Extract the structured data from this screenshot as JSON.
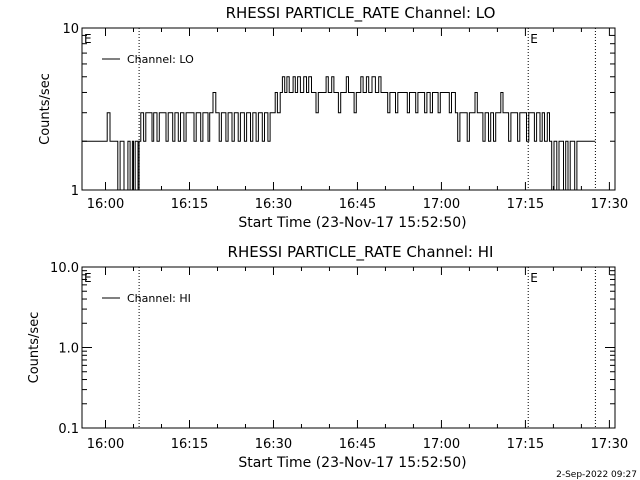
{
  "footer": {
    "timestamp": "2-Sep-2022 09:27"
  },
  "chart_data": [
    {
      "type": "line",
      "title": "RHESSI PARTICLE_RATE Channel: LO",
      "xlabel": "Start Time (23-Nov-17 15:52:50)",
      "ylabel": "Counts/sec",
      "log_y": true,
      "ylim": [
        1,
        10
      ],
      "xlim_minutes": [
        15.8,
        111.0
      ],
      "x_tick_labels": [
        "16:00",
        "16:15",
        "16:30",
        "16:45",
        "17:00",
        "17:15",
        "17:30"
      ],
      "x_tick_minutes": [
        20,
        35,
        50,
        65,
        80,
        95,
        110
      ],
      "y_tick_labels": [
        "1",
        "10"
      ],
      "y_tick_values": [
        1,
        10
      ],
      "legend": {
        "position": "top-left",
        "entries": [
          "Channel: LO"
        ]
      },
      "event_markers": [
        {
          "label": "E",
          "minute": 15.8,
          "dotted": false
        },
        {
          "label": "",
          "minute": 26.0,
          "dotted": true
        },
        {
          "label": "E",
          "minute": 95.5,
          "dotted": true
        },
        {
          "label": "",
          "minute": 107.5,
          "dotted": true
        }
      ],
      "series": [
        {
          "name": "Channel: LO",
          "data": [
            [
              15.8,
              2
            ],
            [
              20,
              2
            ],
            [
              20.3,
              3
            ],
            [
              20.8,
              2
            ],
            [
              22,
              2
            ],
            [
              22.2,
              1
            ],
            [
              22.6,
              2
            ],
            [
              23,
              2
            ],
            [
              23.3,
              1
            ],
            [
              23.7,
              1
            ],
            [
              24,
              2
            ],
            [
              24.4,
              1
            ],
            [
              24.8,
              2
            ],
            [
              25,
              1
            ],
            [
              25.3,
              2
            ],
            [
              25.8,
              1
            ],
            [
              26,
              2
            ],
            [
              26.3,
              3
            ],
            [
              26.8,
              2
            ],
            [
              27.2,
              3
            ],
            [
              28,
              3
            ],
            [
              28.3,
              2
            ],
            [
              28.6,
              3
            ],
            [
              29.2,
              2
            ],
            [
              29.6,
              3
            ],
            [
              30.5,
              3
            ],
            [
              30.8,
              2
            ],
            [
              31.2,
              3
            ],
            [
              32,
              2
            ],
            [
              32.4,
              3
            ],
            [
              33,
              2
            ],
            [
              33.4,
              3
            ],
            [
              34,
              2
            ],
            [
              34.4,
              3
            ],
            [
              35.5,
              3
            ],
            [
              35.8,
              2
            ],
            [
              36.2,
              3
            ],
            [
              37,
              2
            ],
            [
              37.4,
              3
            ],
            [
              38,
              3
            ],
            [
              38.3,
              2
            ],
            [
              38.6,
              3
            ],
            [
              39.2,
              4
            ],
            [
              39.7,
              3
            ],
            [
              40.3,
              2
            ],
            [
              40.7,
              3
            ],
            [
              41.5,
              2
            ],
            [
              41.9,
              3
            ],
            [
              42.6,
              2
            ],
            [
              43,
              3
            ],
            [
              43.7,
              2
            ],
            [
              44.1,
              3
            ],
            [
              44.8,
              2
            ],
            [
              45.2,
              3
            ],
            [
              45.9,
              2
            ],
            [
              46.3,
              3
            ],
            [
              46.9,
              2
            ],
            [
              47.3,
              3
            ],
            [
              48,
              2
            ],
            [
              48.4,
              3
            ],
            [
              49,
              2
            ],
            [
              49.4,
              3
            ],
            [
              50,
              3
            ],
            [
              50.3,
              4
            ],
            [
              50.7,
              3
            ],
            [
              51.2,
              4
            ],
            [
              51.6,
              5
            ],
            [
              52,
              4
            ],
            [
              52.4,
              5
            ],
            [
              52.8,
              4
            ],
            [
              53.2,
              4
            ],
            [
              53.5,
              5
            ],
            [
              53.9,
              4
            ],
            [
              54.3,
              5
            ],
            [
              54.8,
              4
            ],
            [
              55.4,
              5
            ],
            [
              55.9,
              4
            ],
            [
              56.3,
              5
            ],
            [
              56.8,
              4
            ],
            [
              57.2,
              4
            ],
            [
              57.6,
              3
            ],
            [
              58,
              4
            ],
            [
              59,
              4
            ],
            [
              59.4,
              5
            ],
            [
              59.8,
              4
            ],
            [
              60.4,
              5
            ],
            [
              60.8,
              4
            ],
            [
              61.2,
              4
            ],
            [
              61.6,
              3
            ],
            [
              62,
              4
            ],
            [
              62.6,
              4
            ],
            [
              63,
              5
            ],
            [
              63.4,
              4
            ],
            [
              64,
              4
            ],
            [
              64.4,
              3
            ],
            [
              64.8,
              4
            ],
            [
              65.6,
              5
            ],
            [
              66,
              4
            ],
            [
              66.6,
              5
            ],
            [
              67,
              4
            ],
            [
              67.6,
              5
            ],
            [
              68.2,
              4
            ],
            [
              68.8,
              5
            ],
            [
              69.2,
              4
            ],
            [
              70,
              4
            ],
            [
              70.4,
              3
            ],
            [
              70.8,
              4
            ],
            [
              71.4,
              4
            ],
            [
              71.8,
              3
            ],
            [
              72.2,
              4
            ],
            [
              73.5,
              4
            ],
            [
              73.9,
              3
            ],
            [
              74.3,
              4
            ],
            [
              75,
              4
            ],
            [
              75.4,
              3
            ],
            [
              75.8,
              4
            ],
            [
              76.6,
              4
            ],
            [
              77,
              3
            ],
            [
              77.4,
              4
            ],
            [
              78,
              3
            ],
            [
              78.4,
              4
            ],
            [
              79,
              4
            ],
            [
              79.4,
              3
            ],
            [
              79.8,
              4
            ],
            [
              81,
              4
            ],
            [
              81.4,
              3
            ],
            [
              81.8,
              4
            ],
            [
              82.5,
              3
            ],
            [
              82.9,
              2
            ],
            [
              83.3,
              3
            ],
            [
              84.2,
              3
            ],
            [
              84.6,
              2
            ],
            [
              85,
              3
            ],
            [
              85.6,
              3
            ],
            [
              86,
              4
            ],
            [
              86.4,
              3
            ],
            [
              87,
              3
            ],
            [
              87.4,
              2
            ],
            [
              87.8,
              3
            ],
            [
              88.4,
              2
            ],
            [
              88.8,
              3
            ],
            [
              89.3,
              2
            ],
            [
              89.7,
              3
            ],
            [
              90.2,
              3
            ],
            [
              90.6,
              4
            ],
            [
              91,
              3
            ],
            [
              91.6,
              3
            ],
            [
              92,
              2
            ],
            [
              92.4,
              3
            ],
            [
              93.2,
              3
            ],
            [
              93.6,
              2
            ],
            [
              94,
              3
            ],
            [
              94.8,
              3
            ],
            [
              95.2,
              2
            ],
            [
              95.6,
              3
            ],
            [
              96.2,
              3
            ],
            [
              96.6,
              2
            ],
            [
              97,
              3
            ],
            [
              97.6,
              2
            ],
            [
              98,
              3
            ],
            [
              98.4,
              2
            ],
            [
              98.9,
              3
            ],
            [
              99.3,
              2
            ],
            [
              99.7,
              1
            ],
            [
              100.1,
              2
            ],
            [
              100.6,
              1
            ],
            [
              101,
              2
            ],
            [
              101.5,
              2
            ],
            [
              101.8,
              1
            ],
            [
              102.2,
              2
            ],
            [
              102.6,
              1
            ],
            [
              103,
              2
            ],
            [
              103.4,
              2
            ],
            [
              103.8,
              1
            ],
            [
              104.2,
              2
            ],
            [
              107.5,
              2
            ]
          ]
        }
      ]
    },
    {
      "type": "line",
      "title": "RHESSI PARTICLE_RATE Channel: HI",
      "xlabel": "Start Time (23-Nov-17 15:52:50)",
      "ylabel": "Counts/sec",
      "log_y": true,
      "ylim": [
        0.1,
        10
      ],
      "xlim_minutes": [
        15.8,
        111.0
      ],
      "x_tick_labels": [
        "16:00",
        "16:15",
        "16:30",
        "16:45",
        "17:00",
        "17:15",
        "17:30"
      ],
      "x_tick_minutes": [
        20,
        35,
        50,
        65,
        80,
        95,
        110
      ],
      "y_tick_labels": [
        "0.1",
        "1.0",
        "10.0"
      ],
      "y_tick_values": [
        0.1,
        1,
        10
      ],
      "legend": {
        "position": "top-left",
        "entries": [
          "Channel: HI"
        ]
      },
      "event_markers": [
        {
          "label": "E",
          "minute": 15.8,
          "dotted": false
        },
        {
          "label": "",
          "minute": 26.0,
          "dotted": true
        },
        {
          "label": "E",
          "minute": 95.5,
          "dotted": true
        },
        {
          "label": "",
          "minute": 107.5,
          "dotted": true
        }
      ],
      "series": [
        {
          "name": "Channel: HI",
          "data": []
        }
      ]
    }
  ]
}
